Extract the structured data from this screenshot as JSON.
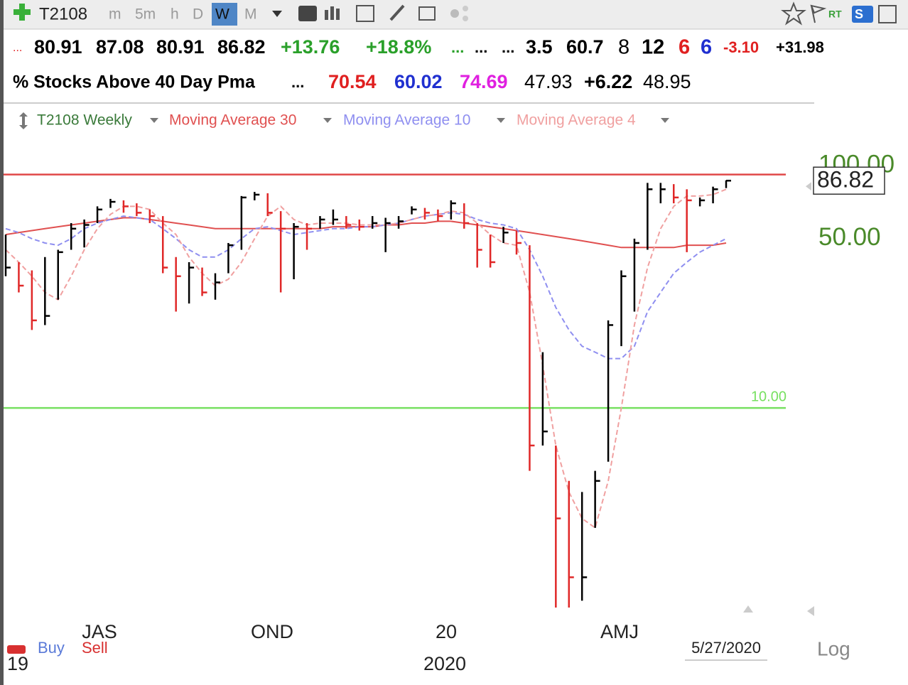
{
  "toolbar": {
    "symbol": "T2108",
    "timeframes": [
      "m",
      "5m",
      "h",
      "D",
      "W",
      "M"
    ],
    "selected": "W",
    "realtime": "RT",
    "scan": "S"
  },
  "quote_row": [
    {
      "text": "...",
      "color": "#e02020",
      "bold": false,
      "size": 16
    },
    {
      "text": "80.91",
      "color": "#000000",
      "bold": true,
      "size": 27
    },
    {
      "text": "87.08",
      "color": "#000000",
      "bold": true,
      "size": 27
    },
    {
      "text": "80.91",
      "color": "#000000",
      "bold": true,
      "size": 27
    },
    {
      "text": "86.82",
      "color": "#000000",
      "bold": true,
      "size": 27
    },
    {
      "text": "+13.76",
      "color": "#2aa02a",
      "bold": true,
      "size": 27
    },
    {
      "text": "+18.8%",
      "color": "#2aa02a",
      "bold": true,
      "size": 27
    },
    {
      "text": "...",
      "color": "#2aa02a",
      "bold": true,
      "size": 22
    },
    {
      "text": "...",
      "color": "#000000",
      "bold": true,
      "size": 22
    },
    {
      "text": "...",
      "color": "#000000",
      "bold": true,
      "size": 22
    },
    {
      "text": "3.5",
      "color": "#000000",
      "bold": true,
      "size": 27
    },
    {
      "text": "60.7",
      "color": "#000000",
      "bold": true,
      "size": 27
    },
    {
      "text": "8",
      "color": "#000000",
      "bold": false,
      "size": 29
    },
    {
      "text": "12",
      "color": "#000000",
      "bold": true,
      "size": 29
    },
    {
      "text": "6",
      "color": "#e02020",
      "bold": true,
      "size": 29
    },
    {
      "text": "6",
      "color": "#2030d0",
      "bold": true,
      "size": 29
    },
    {
      "text": "-3.10",
      "color": "#e02020",
      "bold": true,
      "size": 22
    },
    {
      "text": "+31.98",
      "color": "#000000",
      "bold": true,
      "size": 22
    }
  ],
  "name_row": [
    {
      "text": "% Stocks Above 40 Day Pma",
      "color": "#000000",
      "bold": true,
      "size": 25
    },
    {
      "text": "...",
      "color": "#000000",
      "bold": true,
      "size": 22
    },
    {
      "text": "70.54",
      "color": "#e02020",
      "bold": true,
      "size": 27
    },
    {
      "text": "60.02",
      "color": "#2030d0",
      "bold": true,
      "size": 27
    },
    {
      "text": "74.69",
      "color": "#e020e0",
      "bold": true,
      "size": 27
    },
    {
      "text": "47.93",
      "color": "#000000",
      "bold": false,
      "size": 27
    },
    {
      "text": "+6.22",
      "color": "#000000",
      "bold": true,
      "size": 27
    },
    {
      "text": "48.95",
      "color": "#000000",
      "bold": false,
      "size": 27
    }
  ],
  "chart_data": {
    "type": "ohlc",
    "name": "T2108 Weekly",
    "log_scale": true,
    "grid": false,
    "ylim": [
      1.45,
      134
    ],
    "yticks": [
      {
        "value": 100,
        "label": "100.00"
      },
      {
        "value": 50,
        "label": "50.00"
      }
    ],
    "reference_lines": [
      {
        "value": 92,
        "color": "#e04848"
      },
      {
        "value": 10,
        "label": "10.00",
        "color": "#77e060"
      }
    ],
    "last_value": 86.82,
    "last_date": "5/27/2020",
    "up_color": "#000000",
    "down_color": "#e02828",
    "high": [
      52,
      40,
      37,
      42,
      45,
      58,
      60,
      68,
      73,
      72,
      70,
      66,
      62,
      42,
      40,
      38,
      36,
      48,
      75,
      78,
      77,
      65,
      58,
      58,
      62,
      66,
      62,
      60,
      62,
      61,
      62,
      68,
      67,
      66,
      72,
      70,
      58,
      52,
      56,
      54,
      47,
      17,
      7,
      5,
      4.5,
      5.5,
      23,
      37,
      50,
      85,
      85,
      84,
      80,
      74,
      82,
      87.08
    ],
    "low": [
      35,
      30,
      21,
      22,
      28,
      45,
      46,
      58,
      67,
      64,
      62,
      58,
      36,
      25,
      27,
      29,
      28,
      36,
      45,
      72,
      62,
      30,
      34,
      45,
      55,
      57,
      55,
      54,
      55,
      44,
      55,
      63,
      60,
      59,
      60,
      55,
      38,
      38,
      48,
      43,
      5.5,
      7,
      1.5,
      1.5,
      1.6,
      3.2,
      6,
      18,
      25,
      45,
      70,
      70,
      44,
      68,
      70,
      80.91
    ],
    "close": [
      38,
      32,
      23,
      24,
      44,
      55,
      57,
      66,
      71,
      68,
      64,
      62,
      38,
      35,
      38,
      30,
      33,
      47,
      74,
      76,
      64,
      55,
      56,
      55,
      60,
      60,
      57,
      56,
      58,
      58,
      59,
      66,
      64,
      62,
      70,
      58,
      45,
      40,
      53,
      48,
      7,
      8,
      3.5,
      2,
      2,
      5,
      22,
      35,
      48,
      80,
      80,
      74,
      72,
      72,
      80,
      86.82
    ],
    "series": [
      {
        "name": "Moving Average 30",
        "color": "#e05050",
        "dashed": false,
        "values": [
          52,
          53,
          54,
          55,
          56,
          57,
          58,
          59,
          60,
          61,
          61,
          60,
          59,
          58,
          57,
          56,
          55,
          55,
          55,
          55,
          55,
          55,
          55,
          55,
          55,
          56,
          56,
          56,
          56,
          57,
          57,
          58,
          58,
          59,
          59,
          58,
          57,
          56,
          55,
          54,
          53,
          52,
          51,
          50,
          49,
          48,
          47,
          46,
          46,
          46,
          46,
          46,
          47,
          47,
          47,
          48
        ]
      },
      {
        "name": "Moving Average 10",
        "color": "#8f8ff0",
        "dashed": true,
        "values": [
          55,
          53,
          50,
          48,
          47,
          50,
          55,
          58,
          60,
          62,
          61,
          60,
          55,
          50,
          45,
          42,
          42,
          45,
          50,
          55,
          56,
          54,
          52,
          53,
          54,
          55,
          55,
          56,
          56,
          57,
          58,
          60,
          62,
          63,
          64,
          63,
          60,
          58,
          57,
          55,
          45,
          35,
          26,
          21,
          18,
          17,
          16,
          16,
          18,
          25,
          30,
          36,
          40,
          44,
          47,
          50
        ]
      },
      {
        "name": "Moving Average 4",
        "color": "#f0a0a0",
        "dashed": true,
        "values": [
          45,
          40,
          35,
          30,
          28,
          35,
          45,
          55,
          63,
          68,
          68,
          66,
          58,
          52,
          42,
          36,
          32,
          34,
          40,
          50,
          62,
          68,
          60,
          57,
          58,
          58,
          58,
          57,
          57,
          57,
          58,
          60,
          62,
          63,
          65,
          64,
          58,
          52,
          48,
          47,
          30,
          15,
          7,
          4.5,
          3.5,
          3.2,
          5,
          10,
          22,
          38,
          55,
          68,
          75,
          75,
          76,
          80
        ]
      }
    ],
    "period_labels": [
      "JAS",
      "OND",
      "20",
      "AMJ"
    ],
    "year_labels": [
      "19",
      "2020"
    ]
  },
  "footer": {
    "buy": "Buy",
    "sell": "Sell",
    "scale": "Log"
  }
}
